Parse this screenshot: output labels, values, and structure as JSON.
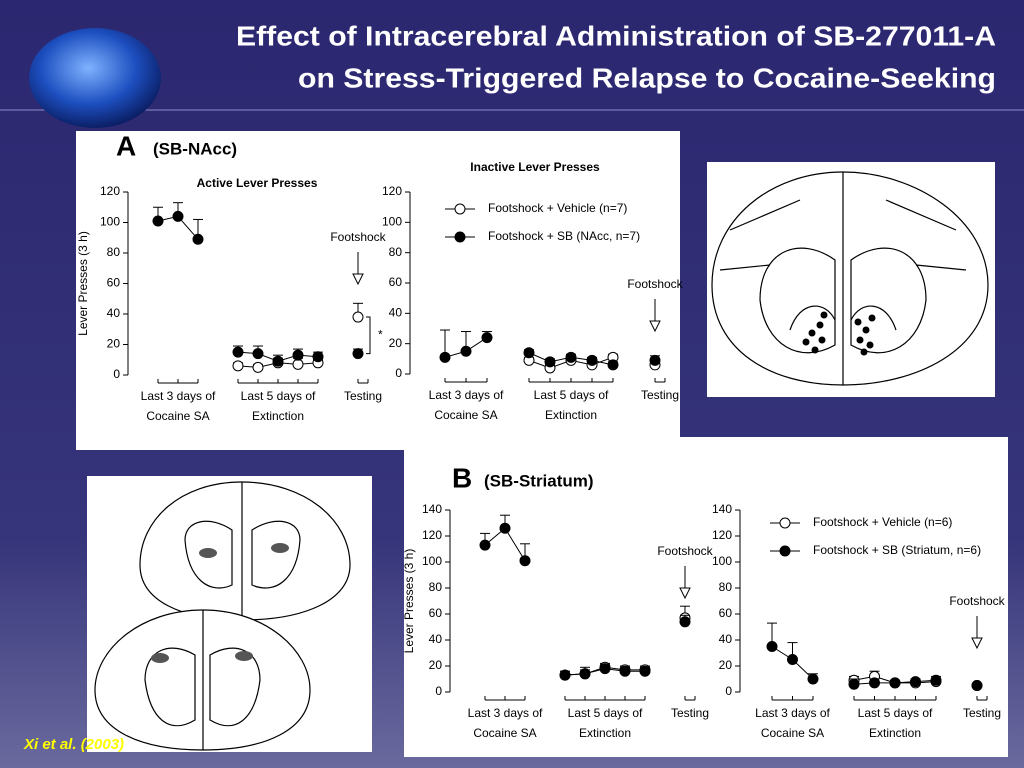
{
  "title": [
    "Effect of Intracerebral Administration of SB-277011-A",
    "on Stress-Triggered Relapse to Cocaine-Seeking"
  ],
  "citation": "Xi et al. (2003)",
  "panels": [
    {
      "letter": "A",
      "label": "(SB-NAcc)"
    },
    {
      "letter": "B",
      "label": "(SB-Striatum)"
    }
  ],
  "chart_data": [
    {
      "type": "line",
      "title": "Active Lever Presses",
      "y_label": "Lever Presses (3 h)",
      "ylim": [
        0,
        120
      ],
      "yticks": [
        0,
        20,
        40,
        60,
        80,
        100,
        120
      ],
      "groups": [
        {
          "label": [
            "Last 3 days of",
            "Cocaine SA"
          ]
        },
        {
          "label": [
            "Last 5 days of",
            "Extinction"
          ]
        },
        {
          "label": [
            "Testing"
          ]
        }
      ],
      "annotation": "Footshock",
      "significance": "*",
      "series": [
        {
          "marker": "open",
          "color": "#000000",
          "values": [
            [
              null,
              null,
              null
            ],
            [
              6,
              5,
              8,
              7,
              8
            ],
            [
              38
            ]
          ],
          "errors": [
            [
              null,
              null,
              null
            ],
            [
              2,
              2,
              3,
              4,
              2
            ],
            [
              9
            ]
          ]
        },
        {
          "marker": "filled",
          "color": "#000000",
          "values": [
            [
              101,
              104,
              89
            ],
            [
              15,
              14,
              9,
              13,
              12
            ],
            [
              14
            ]
          ],
          "errors": [
            [
              9,
              9,
              13
            ],
            [
              4,
              5,
              4,
              4,
              3
            ],
            [
              3
            ]
          ]
        }
      ]
    },
    {
      "type": "line",
      "title": "Inactive Lever Presses",
      "ylim": [
        0,
        120
      ],
      "yticks": [
        0,
        20,
        40,
        60,
        80,
        100,
        120
      ],
      "groups": [
        {
          "label": [
            "Last 3 days of",
            "Cocaine SA"
          ]
        },
        {
          "label": [
            "Last 5 days of",
            "Extinction"
          ]
        },
        {
          "label": [
            "Testing"
          ]
        }
      ],
      "annotation": "Footshock",
      "legend": "upper right",
      "series": [
        {
          "name": "Footshock + Vehicle (n=7)",
          "marker": "open",
          "color": "#000000",
          "values": [
            [
              null,
              null,
              null
            ],
            [
              9,
              4,
              9,
              6,
              11
            ],
            [
              6
            ]
          ],
          "errors": [
            [
              null,
              null,
              null
            ],
            [
              2,
              2,
              2,
              2,
              2
            ],
            [
              2
            ]
          ]
        },
        {
          "name": "Footshock + SB (NAcc, n=7)",
          "marker": "filled",
          "color": "#000000",
          "values": [
            [
              11,
              15,
              24
            ],
            [
              14,
              8,
              11,
              9,
              6
            ],
            [
              9
            ]
          ],
          "errors": [
            [
              18,
              13,
              4
            ],
            [
              2,
              2,
              2,
              2,
              2
            ],
            [
              3
            ]
          ]
        }
      ]
    },
    {
      "type": "line",
      "y_label": "Lever Presses (3 h)",
      "ylim": [
        0,
        140
      ],
      "yticks": [
        0,
        20,
        40,
        60,
        80,
        100,
        120,
        140
      ],
      "groups": [
        {
          "label": [
            "Last 3 days of",
            "Cocaine SA"
          ]
        },
        {
          "label": [
            "Last 5 days of",
            "Extinction"
          ]
        },
        {
          "label": [
            "Testing"
          ]
        }
      ],
      "annotation": "Footshock",
      "series": [
        {
          "marker": "open",
          "color": "#000000",
          "values": [
            [
              null,
              null,
              null
            ],
            [
              13,
              14,
              19,
              17,
              17
            ],
            [
              57
            ]
          ],
          "errors": [
            [
              null,
              null,
              null
            ],
            [
              3,
              5,
              3,
              3,
              3
            ],
            [
              9
            ]
          ]
        },
        {
          "marker": "filled",
          "color": "#000000",
          "values": [
            [
              113,
              126,
              101
            ],
            [
              13,
              14,
              18,
              16,
              16
            ],
            [
              54
            ]
          ],
          "errors": [
            [
              9,
              10,
              13
            ],
            [
              3,
              3,
              3,
              3,
              3
            ],
            [
              5
            ]
          ]
        }
      ]
    },
    {
      "type": "line",
      "ylim": [
        0,
        140
      ],
      "yticks": [
        0,
        20,
        40,
        60,
        80,
        100,
        120,
        140
      ],
      "groups": [
        {
          "label": [
            "Last 3 days of",
            "Cocaine SA"
          ]
        },
        {
          "label": [
            "Last 5 days of",
            "Extinction"
          ]
        },
        {
          "label": [
            "Testing"
          ]
        }
      ],
      "annotation": "Footshock",
      "legend": "upper right",
      "series": [
        {
          "name": "Footshock + Vehicle (n=6)",
          "marker": "open",
          "color": "#000000",
          "values": [
            [
              null,
              null,
              null
            ],
            [
              9,
              12,
              7,
              7,
              8
            ],
            [
              5
            ]
          ],
          "errors": [
            [
              null,
              null,
              null
            ],
            [
              3,
              4,
              2,
              2,
              2
            ],
            [
              1
            ]
          ]
        },
        {
          "name": "Footshock + SB (Striatum, n=6)",
          "marker": "filled",
          "color": "#000000",
          "values": [
            [
              35,
              25,
              10
            ],
            [
              6,
              7,
              7,
              8,
              9
            ],
            [
              5
            ]
          ],
          "errors": [
            [
              18,
              13,
              4
            ],
            [
              4,
              3,
              2,
              2,
              3
            ],
            [
              1
            ]
          ]
        }
      ]
    }
  ]
}
